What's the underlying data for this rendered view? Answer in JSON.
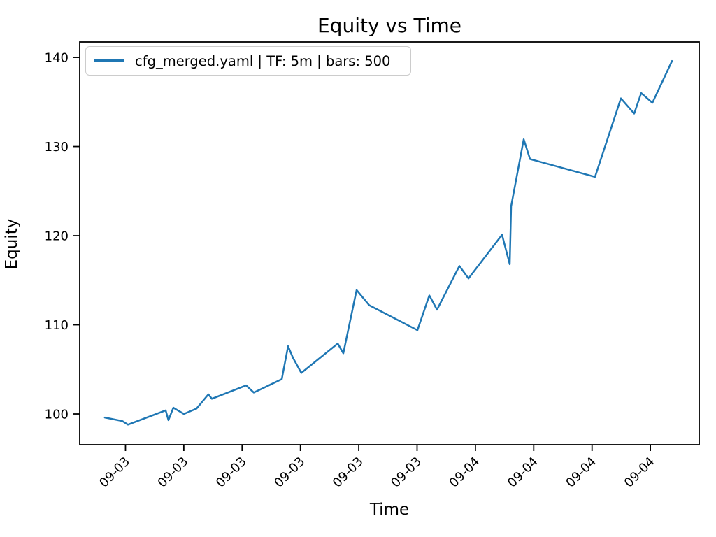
{
  "figure": {
    "title": "Equity vs Time",
    "xlabel": "Time",
    "ylabel": "Equity",
    "legend": {
      "label": "cfg_merged.yaml | TF: 5m | bars: 500",
      "line_color": "#1f77b4"
    }
  },
  "chart_data": {
    "type": "line",
    "title": "Equity vs Time",
    "xlabel": "Time",
    "ylabel": "Equity",
    "legend_label": "cfg_merged.yaml | TF: 5m | bars: 500",
    "legend_position": "upper left",
    "grid": false,
    "line_color": "#1f77b4",
    "axis_color": "#000000",
    "x_tick_labels": [
      "09-03",
      "09-03",
      "09-03",
      "09-03",
      "09-03",
      "09-03",
      "09-04",
      "09-04",
      "09-04",
      "09-04"
    ],
    "x_tick_positions": [
      0,
      1,
      2,
      3,
      4,
      5,
      6,
      7,
      8,
      9
    ],
    "y_ticks": [
      100,
      110,
      120,
      130,
      140
    ],
    "xlim": [
      -0.785,
      9.838
    ],
    "ylim": [
      96.55,
      141.73
    ],
    "x": [
      -0.354,
      -0.054,
      0.042,
      0.689,
      0.737,
      0.821,
      1.001,
      1.217,
      1.421,
      1.481,
      2.068,
      2.2,
      2.68,
      2.788,
      2.872,
      3.015,
      3.639,
      3.735,
      3.963,
      4.179,
      5.006,
      5.21,
      5.342,
      5.725,
      5.881,
      6.457,
      6.589,
      6.613,
      6.829,
      6.937,
      8.052,
      8.495,
      8.723,
      8.843,
      9.035,
      9.371
    ],
    "y": [
      99.6,
      99.2,
      98.8,
      100.4,
      99.3,
      100.7,
      100.0,
      100.6,
      102.2,
      101.7,
      103.2,
      102.4,
      103.9,
      107.6,
      106.3,
      104.6,
      107.9,
      106.8,
      113.9,
      112.2,
      109.4,
      113.3,
      111.7,
      116.6,
      115.2,
      120.1,
      116.8,
      123.3,
      130.8,
      128.6,
      126.6,
      135.4,
      133.7,
      136.0,
      134.9,
      139.6
    ]
  }
}
